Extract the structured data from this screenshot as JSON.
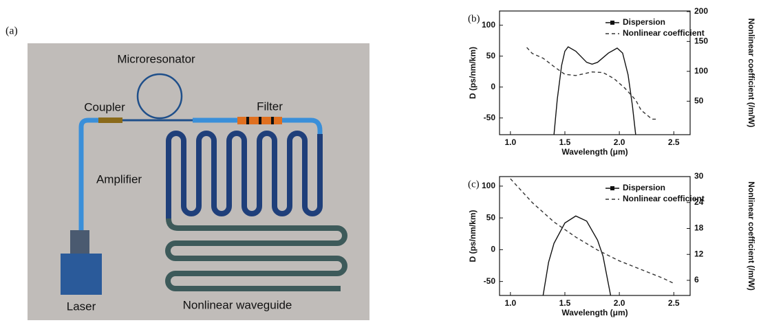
{
  "diagram": {
    "label": "(a)",
    "components": [
      "Microresonator",
      "Coupler",
      "Filter",
      "Amplifier",
      "Laser",
      "Nonlinear waveguide"
    ]
  },
  "chart_data": [
    {
      "type": "line",
      "title": "(b)",
      "x_label": "Wavelength (μm)",
      "y_label": "D (ps/nm/km)",
      "y2_label": "Nonlinear coefficient (/m/W)",
      "xlim": [
        0.9,
        2.65
      ],
      "xticks": [
        {
          "value": 1,
          "label": "1.0"
        },
        1.5,
        {
          "value": 2,
          "label": "2.0"
        },
        2.5
      ],
      "ylim": [
        -77,
        123
      ],
      "yticks": [
        -50,
        0,
        50,
        100
      ],
      "y2lim": [
        -6,
        201
      ],
      "y2ticks": [
        50,
        100,
        150,
        200
      ],
      "legend": "upper right",
      "series": [
        {
          "name": "Dispersion",
          "color": "#111111",
          "linestyle": "solid",
          "x": [
            1.4,
            1.43,
            1.47,
            1.5,
            1.53,
            1.6,
            1.7,
            1.75,
            1.8,
            1.9,
            1.98,
            2.03,
            2.08,
            2.12,
            2.15
          ],
          "values": [
            -77,
            -20,
            35,
            58,
            65,
            58,
            40,
            37,
            40,
            55,
            63,
            55,
            20,
            -30,
            -77
          ]
        },
        {
          "name": "Nonlinear coefficient",
          "color": "#333333",
          "linestyle": "dashed",
          "axis": "y2",
          "x": [
            1.15,
            1.2,
            1.3,
            1.4,
            1.5,
            1.6,
            1.75,
            1.85,
            1.95,
            2.05,
            2.15,
            2.2,
            2.3,
            2.35
          ],
          "values": [
            140,
            130,
            122,
            108,
            95,
            93,
            99,
            98,
            88,
            72,
            52,
            35,
            20,
            20
          ]
        }
      ]
    },
    {
      "type": "line",
      "title": "(c)",
      "x_label": "Wavelength (μm)",
      "y_label": "D (ps/nm/km)",
      "y2_label": "Nonlinear coefficient (/m/W)",
      "xlim": [
        0.9,
        2.65
      ],
      "xticks": [
        {
          "value": 1,
          "label": "1.0"
        },
        1.5,
        {
          "value": 2,
          "label": "2.0"
        },
        2.5
      ],
      "ylim": [
        -72,
        115
      ],
      "yticks": [
        -50,
        0,
        50,
        100
      ],
      "y2lim": [
        2.5,
        30
      ],
      "y2ticks": [
        6,
        12,
        18,
        24,
        30
      ],
      "legend": "upper right",
      "series": [
        {
          "name": "Dispersion",
          "color": "#111111",
          "linestyle": "solid",
          "x": [
            1.3,
            1.35,
            1.4,
            1.5,
            1.6,
            1.7,
            1.8,
            1.85,
            1.92
          ],
          "values": [
            -72,
            -20,
            10,
            42,
            53,
            45,
            15,
            -10,
            -72
          ]
        },
        {
          "name": "Nonlinear coefficient",
          "color": "#333333",
          "linestyle": "dashed",
          "axis": "y2",
          "x": [
            1.0,
            1.2,
            1.4,
            1.6,
            1.8,
            2.0,
            2.2,
            2.4,
            2.5
          ],
          "values": [
            29.5,
            24,
            19.5,
            16,
            13,
            10.5,
            8.5,
            6.5,
            5.3
          ]
        }
      ]
    }
  ]
}
